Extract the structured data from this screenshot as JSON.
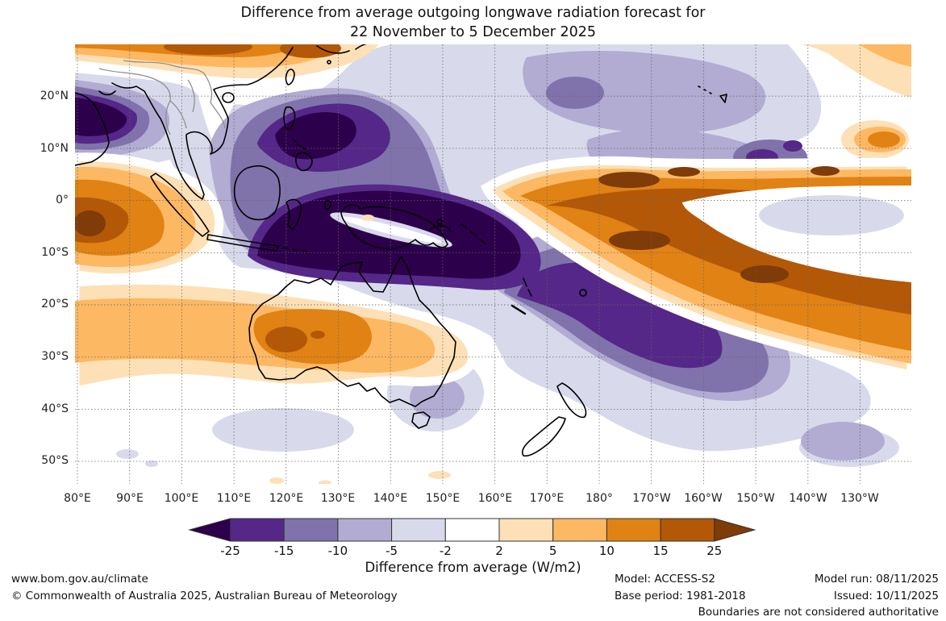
{
  "title": {
    "line1": "Difference from average outgoing longwave radiation forecast for",
    "line2": "22 November to 5 December 2025"
  },
  "map": {
    "lat_labels": [
      "20°N",
      "10°N",
      "0°",
      "10°S",
      "20°S",
      "30°S",
      "40°S",
      "50°S"
    ],
    "lon_labels": [
      "80°E",
      "90°E",
      "100°E",
      "110°E",
      "120°E",
      "130°E",
      "140°E",
      "150°E",
      "160°E",
      "170°E",
      "180°",
      "170°W",
      "160°W",
      "150°W",
      "140°W",
      "130°W"
    ]
  },
  "colorbar": {
    "label": "Difference from average (W/m2)",
    "ticks": [
      "-25",
      "-15",
      "-10",
      "-5",
      "-2",
      "2",
      "5",
      "10",
      "15",
      "25"
    ],
    "segment_colors": [
      "#542788",
      "#8073ac",
      "#b2abd2",
      "#d8daeb",
      "#ffffff",
      "#fee0b6",
      "#fdb863",
      "#e08214",
      "#b35806"
    ],
    "left_arrow_color": "#2d004b",
    "right_arrow_color": "#7f3b08"
  },
  "footer": {
    "url": "www.bom.gov.au/climate",
    "copyright": "© Commonwealth of Australia 2025, Australian Bureau of Meteorology",
    "model": "Model: ACCESS-S2",
    "base_period": "Base period: 1981-2018",
    "model_run": "Model run: 08/11/2025",
    "issued": "Issued: 10/11/2025",
    "boundaries": "Boundaries are not considered authoritative"
  },
  "chart_data": {
    "type": "heatmap",
    "subtype": "filled-contour geographic anomaly map",
    "title": "Difference from average outgoing longwave radiation forecast for 22 November to 5 December 2025",
    "units": "W/m2",
    "colorbar_label": "Difference from average (W/m2)",
    "scale_breaks": [
      -25,
      -15,
      -10,
      -5,
      -2,
      2,
      5,
      10,
      15,
      25
    ],
    "scale_colors_low_to_high": [
      "#2d004b",
      "#542788",
      "#8073ac",
      "#b2abd2",
      "#d8daeb",
      "#ffffff",
      "#fee0b6",
      "#fdb863",
      "#e08214",
      "#b35806",
      "#7f3b08"
    ],
    "x_axis": {
      "label_ticks": [
        "80°E",
        "90°E",
        "100°E",
        "110°E",
        "120°E",
        "130°E",
        "140°E",
        "150°E",
        "160°E",
        "170°E",
        "180°",
        "170°W",
        "160°W",
        "150°W",
        "140°W",
        "130°W"
      ],
      "range": [
        "80°E",
        "120°W"
      ]
    },
    "y_axis": {
      "label_ticks": [
        "20°N",
        "10°N",
        "0°",
        "10°S",
        "20°S",
        "30°S",
        "40°S",
        "50°S"
      ],
      "range": [
        "30°N",
        "55°S"
      ]
    },
    "grid": "dotted 10-degree graticule",
    "notable_regions": [
      {
        "region": "Bay of Bengal / Southeast Asia / Maritime Continent (Indonesia, New Guinea)",
        "anomaly": "strongly negative, below -25 W/m2 in cores"
      },
      {
        "region": "Southwest Pacific near Fiji (10°S-25°S, 170°E-170°W)",
        "anomaly": "strongly negative, -15 to -25 W/m2"
      },
      {
        "region": "Central equatorial Pacific (0°-10°S, 170°E-120°W)",
        "anomaly": "strongly positive, +15 to above +25 W/m2"
      },
      {
        "region": "Western/central Australia",
        "anomaly": "positive, +5 to +15 W/m2"
      },
      {
        "region": "Western Indian Ocean near 80°E-90°E equator",
        "anomaly": "positive, +10 to above +25 W/m2"
      },
      {
        "region": "Southern China / north of 20°N band",
        "anomaly": "positive, +10 to +25 W/m2"
      },
      {
        "region": "North Pacific (0°-25°N east of 150°E)",
        "anomaly": "weakly negative, -2 to -10 W/m2"
      }
    ]
  }
}
